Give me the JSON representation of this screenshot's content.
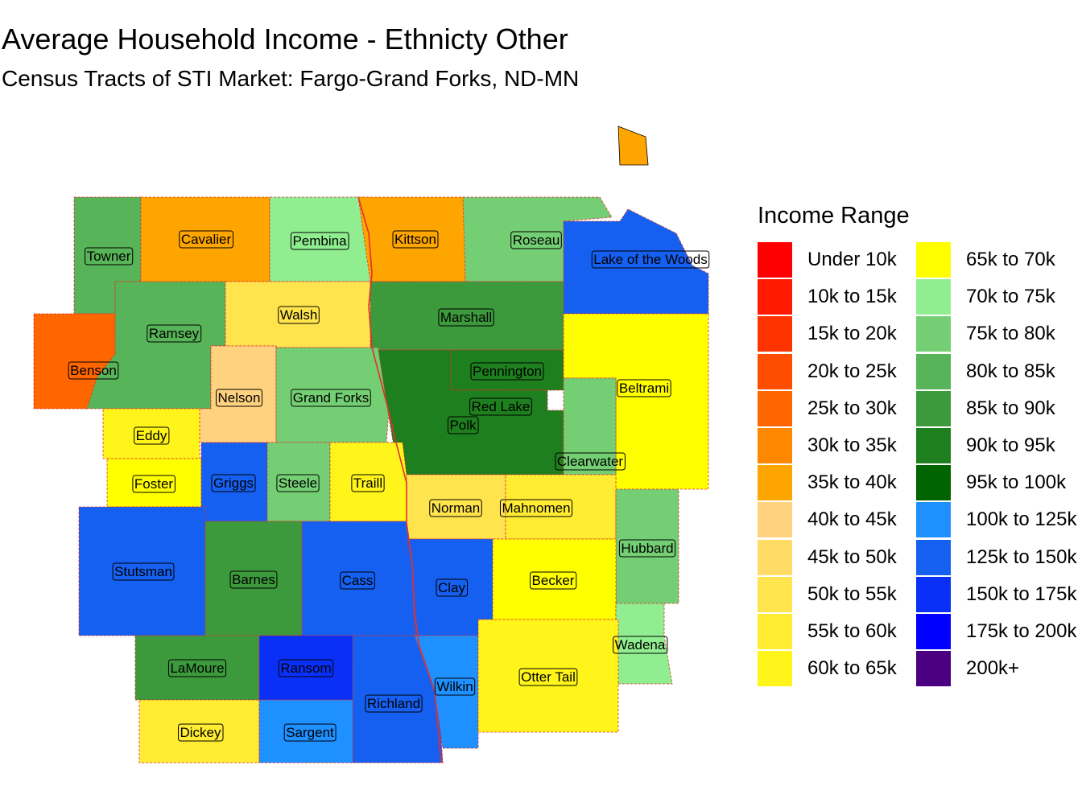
{
  "title": "Average Household Income - Ethnicty Other",
  "subtitle": "Census Tracts of STI Market: Fargo-Grand Forks, ND-MN",
  "legend": {
    "title": "Income Range",
    "items": [
      {
        "label": "Under 10k",
        "color": "#FF0000"
      },
      {
        "label": "10k to 15k",
        "color": "#FF1A00"
      },
      {
        "label": "15k to 20k",
        "color": "#FF3300"
      },
      {
        "label": "20k to 25k",
        "color": "#FF4D00"
      },
      {
        "label": "25k to 30k",
        "color": "#FF6600"
      },
      {
        "label": "30k to 35k",
        "color": "#FF8800"
      },
      {
        "label": "35k to 40k",
        "color": "#FFA500"
      },
      {
        "label": "40k to 45k",
        "color": "#FFD27F"
      },
      {
        "label": "45k to 50k",
        "color": "#FFDC66"
      },
      {
        "label": "50k to 55k",
        "color": "#FFE44D"
      },
      {
        "label": "55k to 60k",
        "color": "#FFEC33"
      },
      {
        "label": "60k to 65k",
        "color": "#FFF51A"
      },
      {
        "label": "65k to 70k",
        "color": "#FFFF00"
      },
      {
        "label": "70k to 75k",
        "color": "#90EE90"
      },
      {
        "label": "75k to 80k",
        "color": "#74CF74"
      },
      {
        "label": "80k to 85k",
        "color": "#58B458"
      },
      {
        "label": "85k to 90k",
        "color": "#3C9A3C"
      },
      {
        "label": "90k to 95k",
        "color": "#1E7F1E"
      },
      {
        "label": "95k to 100k",
        "color": "#006400"
      },
      {
        "label": "100k to 125k",
        "color": "#1E90FF"
      },
      {
        "label": "125k to 150k",
        "color": "#1560F0"
      },
      {
        "label": "150k to 175k",
        "color": "#0A30F8"
      },
      {
        "label": "175k to 200k",
        "color": "#0000FF"
      },
      {
        "label": "200k+",
        "color": "#4B0082"
      }
    ]
  },
  "counties": [
    {
      "name": "Towner",
      "color": "#58B458"
    },
    {
      "name": "Cavalier",
      "color": "#FFA500"
    },
    {
      "name": "Pembina",
      "color": "#90EE90"
    },
    {
      "name": "Kittson",
      "color": "#FFA500"
    },
    {
      "name": "Roseau",
      "color": "#74CF74"
    },
    {
      "name": "Lake of the Woods",
      "color": "#1560F0"
    },
    {
      "name": "Benson",
      "color": "#FF6600"
    },
    {
      "name": "Ramsey",
      "color": "#58B458"
    },
    {
      "name": "Walsh",
      "color": "#FFE44D"
    },
    {
      "name": "Marshall",
      "color": "#3C9A3C"
    },
    {
      "name": "Pennington",
      "color": "#1E7F1E"
    },
    {
      "name": "Beltrami",
      "color": "#FFFF00"
    },
    {
      "name": "Nelson",
      "color": "#FFD27F"
    },
    {
      "name": "Grand Forks",
      "color": "#74CF74"
    },
    {
      "name": "Red Lake",
      "color": "#90EE90"
    },
    {
      "name": "Polk",
      "color": "#1E7F1E"
    },
    {
      "name": "Eddy",
      "color": "#FFF51A"
    },
    {
      "name": "Clearwater",
      "color": "#74CF74"
    },
    {
      "name": "Foster",
      "color": "#FFFF00"
    },
    {
      "name": "Griggs",
      "color": "#1560F0"
    },
    {
      "name": "Steele",
      "color": "#74CF74"
    },
    {
      "name": "Traill",
      "color": "#FFF51A"
    },
    {
      "name": "Norman",
      "color": "#FFE44D"
    },
    {
      "name": "Mahnomen",
      "color": "#FFEC33"
    },
    {
      "name": "Hubbard",
      "color": "#74CF74"
    },
    {
      "name": "Stutsman",
      "color": "#1560F0"
    },
    {
      "name": "Barnes",
      "color": "#3C9A3C"
    },
    {
      "name": "Cass",
      "color": "#1560F0"
    },
    {
      "name": "Clay",
      "color": "#1560F0"
    },
    {
      "name": "Becker",
      "color": "#FFFF00"
    },
    {
      "name": "Wadena",
      "color": "#90EE90"
    },
    {
      "name": "LaMoure",
      "color": "#3C9A3C"
    },
    {
      "name": "Ransom",
      "color": "#0A30F8"
    },
    {
      "name": "Richland",
      "color": "#1560F0"
    },
    {
      "name": "Wilkin",
      "color": "#1E90FF"
    },
    {
      "name": "Otter Tail",
      "color": "#FFF51A"
    },
    {
      "name": "Dickey",
      "color": "#FFEC33"
    },
    {
      "name": "Sargent",
      "color": "#1E90FF"
    }
  ]
}
